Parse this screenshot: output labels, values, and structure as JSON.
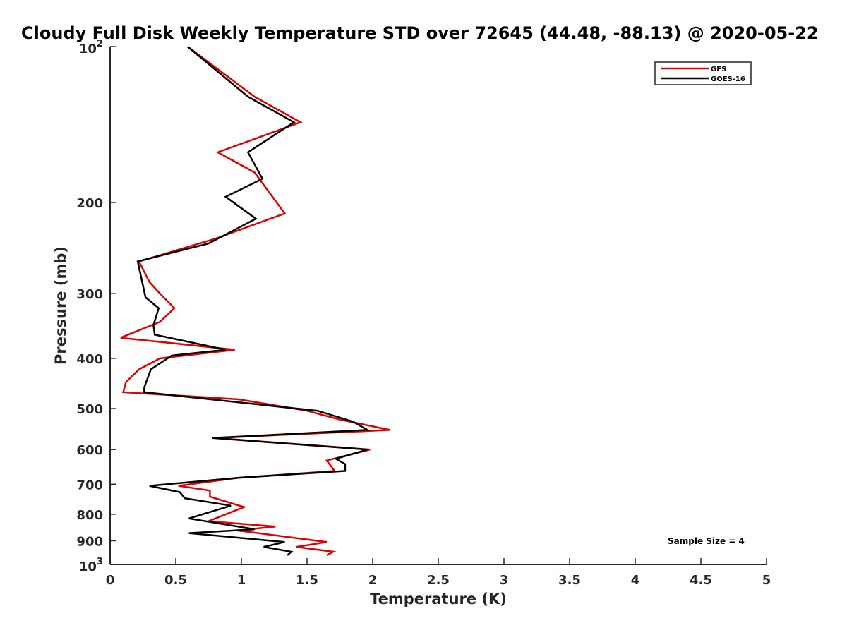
{
  "chart_data": {
    "type": "line",
    "title": "Cloudy Full Disk Weekly Temperature STD over 72645 (44.48, -88.13) @ 2020-05-22",
    "xlabel": "Temperature (K)",
    "ylabel": "Pressure (mb)",
    "xlim": [
      0,
      5
    ],
    "ylim": [
      100,
      1000
    ],
    "y_scale": "log",
    "y_reversed": true,
    "x_ticks": [
      "0",
      "0.5",
      "1",
      "1.5",
      "2",
      "2.5",
      "3",
      "3.5",
      "4",
      "4.5",
      "5"
    ],
    "y_ticks": [
      {
        "value": 100,
        "base": "10",
        "exp": "2"
      },
      {
        "value": 200,
        "label": "200"
      },
      {
        "value": 300,
        "label": "300"
      },
      {
        "value": 400,
        "label": "400"
      },
      {
        "value": 500,
        "label": "500"
      },
      {
        "value": 600,
        "label": "600"
      },
      {
        "value": 700,
        "label": "700"
      },
      {
        "value": 800,
        "label": "800"
      },
      {
        "value": 900,
        "label": "900"
      },
      {
        "value": 1000,
        "base": "10",
        "exp": "3"
      }
    ],
    "grid": false,
    "legend_position": "top-right",
    "annotation": "Sample Size = 4",
    "series": [
      {
        "name": "GFS",
        "color": "#e00000",
        "points": [
          [
            0.59,
            100
          ],
          [
            1.1,
            125
          ],
          [
            1.45,
            140
          ],
          [
            0.82,
            160
          ],
          [
            1.1,
            175
          ],
          [
            1.33,
            210
          ],
          [
            0.8,
            235
          ],
          [
            0.22,
            260
          ],
          [
            0.3,
            285
          ],
          [
            0.38,
            300
          ],
          [
            0.49,
            320
          ],
          [
            0.38,
            340
          ],
          [
            0.08,
            365
          ],
          [
            0.95,
            385
          ],
          [
            0.38,
            400
          ],
          [
            0.22,
            420
          ],
          [
            0.12,
            445
          ],
          [
            0.1,
            465
          ],
          [
            0.98,
            480
          ],
          [
            1.5,
            505
          ],
          [
            1.75,
            525
          ],
          [
            2.13,
            550
          ],
          [
            0.8,
            570
          ],
          [
            1.98,
            600
          ],
          [
            1.65,
            630
          ],
          [
            1.71,
            660
          ],
          [
            0.98,
            680
          ],
          [
            0.52,
            705
          ],
          [
            0.76,
            720
          ],
          [
            0.76,
            740
          ],
          [
            1.02,
            775
          ],
          [
            0.75,
            825
          ],
          [
            1.26,
            845
          ],
          [
            0.97,
            860
          ],
          [
            1.65,
            905
          ],
          [
            1.42,
            925
          ],
          [
            1.7,
            945
          ],
          [
            1.65,
            960
          ]
        ]
      },
      {
        "name": "GOES-16",
        "color": "#000000",
        "points": [
          [
            0.59,
            100
          ],
          [
            1.05,
            125
          ],
          [
            1.4,
            140
          ],
          [
            1.05,
            160
          ],
          [
            1.16,
            180
          ],
          [
            0.88,
            195
          ],
          [
            1.11,
            215
          ],
          [
            0.75,
            240
          ],
          [
            0.21,
            260
          ],
          [
            0.27,
            305
          ],
          [
            0.37,
            320
          ],
          [
            0.33,
            345
          ],
          [
            0.34,
            360
          ],
          [
            0.88,
            385
          ],
          [
            0.47,
            395
          ],
          [
            0.31,
            420
          ],
          [
            0.26,
            455
          ],
          [
            0.26,
            465
          ],
          [
            1.58,
            505
          ],
          [
            1.85,
            530
          ],
          [
            1.96,
            550
          ],
          [
            0.78,
            570
          ],
          [
            1.96,
            600
          ],
          [
            1.72,
            625
          ],
          [
            1.79,
            640
          ],
          [
            1.79,
            660
          ],
          [
            0.98,
            680
          ],
          [
            0.3,
            705
          ],
          [
            0.53,
            725
          ],
          [
            0.57,
            745
          ],
          [
            0.92,
            770
          ],
          [
            0.6,
            815
          ],
          [
            1.1,
            855
          ],
          [
            0.6,
            870
          ],
          [
            1.33,
            905
          ],
          [
            1.17,
            925
          ],
          [
            1.38,
            945
          ],
          [
            1.35,
            960
          ]
        ]
      }
    ]
  }
}
